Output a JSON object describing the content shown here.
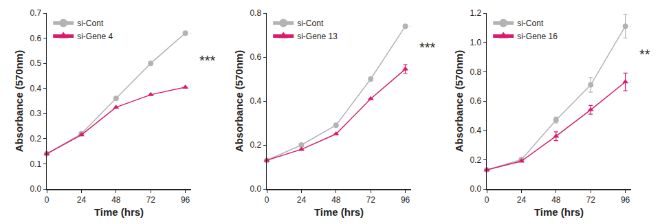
{
  "chart_data": [
    {
      "type": "line",
      "x_label": "Time (hrs)",
      "y_label": "Absorbance (570nm)",
      "x": [
        0,
        24,
        48,
        72,
        96
      ],
      "xlim": [
        0,
        100
      ],
      "xticks": [
        0,
        24,
        48,
        72,
        96
      ],
      "ylim": [
        0,
        0.7
      ],
      "yticks": [
        {
          "value": 0,
          "label": "0.0"
        },
        0.1,
        0.2,
        0.3,
        0.4,
        0.5,
        0.6,
        0.7
      ],
      "grid": false,
      "legend": "upper left",
      "series": [
        {
          "name": "si-Cont",
          "color": "#b3b3b3",
          "marker": "circle",
          "values": [
            0.14,
            0.22,
            0.36,
            0.5,
            0.62
          ]
        },
        {
          "name": "si-Gene 4",
          "color": "#d81b6a",
          "marker": "triangle",
          "values": [
            0.14,
            0.215,
            0.325,
            0.375,
            0.405
          ]
        }
      ],
      "annotations": [
        "***"
      ]
    },
    {
      "type": "line",
      "x_label": "Time (hrs)",
      "y_label": "Absorbance (570nm)",
      "x": [
        0,
        24,
        48,
        72,
        96
      ],
      "xlim": [
        0,
        100
      ],
      "xticks": [
        0,
        24,
        48,
        72,
        96
      ],
      "ylim": [
        0,
        0.8
      ],
      "yticks": [
        {
          "value": 0,
          "label": "0.0"
        },
        0.2,
        0.4,
        0.6,
        0.8
      ],
      "grid": false,
      "legend": "upper left",
      "series": [
        {
          "name": "si-Cont",
          "color": "#b3b3b3",
          "marker": "circle",
          "values": [
            0.13,
            0.2,
            0.29,
            0.5,
            0.74
          ]
        },
        {
          "name": "si-Gene 13",
          "color": "#d81b6a",
          "marker": "triangle",
          "values": [
            0.13,
            0.18,
            0.25,
            0.41,
            0.545
          ],
          "errors": [
            0,
            0,
            0,
            0,
            0.02
          ]
        }
      ],
      "annotations": [
        "***"
      ]
    },
    {
      "type": "line",
      "x_label": "Time (hrs)",
      "y_label": "Absorbance (570nm)",
      "x": [
        0,
        24,
        48,
        72,
        96
      ],
      "xlim": [
        0,
        100
      ],
      "xticks": [
        0,
        24,
        48,
        72,
        96
      ],
      "ylim": [
        0,
        1.2
      ],
      "yticks": [
        {
          "value": 0,
          "label": "0.0"
        },
        0.2,
        0.4,
        0.6,
        0.8,
        {
          "value": 1,
          "label": "1.0"
        },
        1.2
      ],
      "grid": false,
      "legend": "upper left",
      "series": [
        {
          "name": "si-Cont",
          "color": "#b3b3b3",
          "marker": "circle",
          "values": [
            0.13,
            0.2,
            0.47,
            0.71,
            1.11
          ],
          "errors": [
            0,
            0,
            0.02,
            0.05,
            0.08
          ]
        },
        {
          "name": "si-Gene 16",
          "color": "#d81b6a",
          "marker": "triangle",
          "values": [
            0.13,
            0.19,
            0.36,
            0.54,
            0.73
          ],
          "errors": [
            0,
            0,
            0.03,
            0.03,
            0.06
          ]
        }
      ],
      "annotations": [
        "**"
      ]
    }
  ]
}
